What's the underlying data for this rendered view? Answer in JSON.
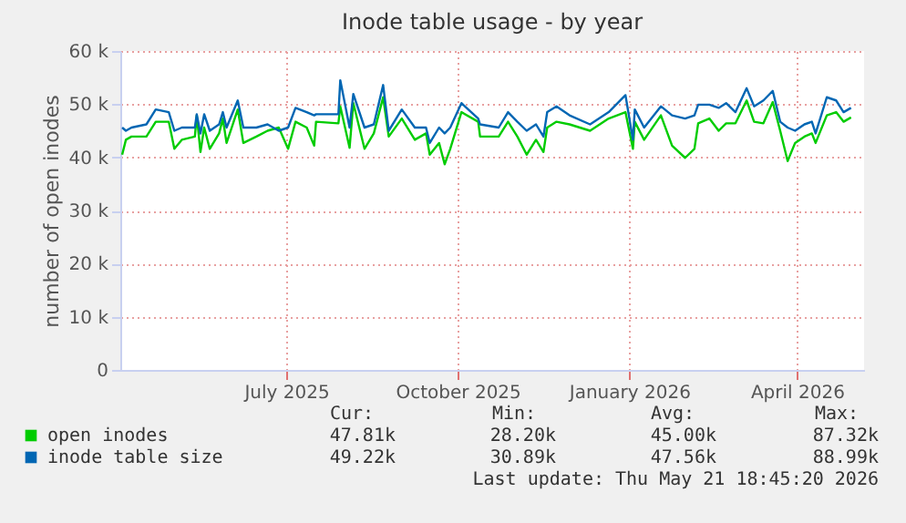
{
  "chart_data": {
    "type": "line",
    "title": "Inode table usage - by year",
    "ylabel": "number of open inodes",
    "x": [
      "2025-04-18",
      "2025-04-20",
      "2025-04-23",
      "2025-05-01",
      "2025-05-06",
      "2025-05-13",
      "2025-05-16",
      "2025-05-20",
      "2025-05-27",
      "2025-05-28",
      "2025-05-30",
      "2025-06-01",
      "2025-06-04",
      "2025-06-09",
      "2025-06-11",
      "2025-06-13",
      "2025-06-19",
      "2025-06-22",
      "2025-06-29",
      "2025-07-05",
      "2025-07-11",
      "2025-07-16",
      "2025-07-20",
      "2025-07-26",
      "2025-07-30",
      "2025-07-31",
      "2025-08-12",
      "2025-08-13",
      "2025-08-18",
      "2025-08-20",
      "2025-08-26",
      "2025-08-31",
      "2025-09-05",
      "2025-09-08",
      "2025-09-15",
      "2025-09-22",
      "2025-09-28",
      "2025-09-30",
      "2025-10-05",
      "2025-10-08",
      "2025-10-11",
      "2025-10-17",
      "2025-10-26",
      "2025-10-27",
      "2025-11-06",
      "2025-11-11",
      "2025-11-16",
      "2025-11-21",
      "2025-11-26",
      "2025-11-30",
      "2025-12-02",
      "2025-12-07",
      "2025-12-14",
      "2025-12-25",
      "2026-01-04",
      "2026-01-13",
      "2026-01-17",
      "2026-01-18",
      "2026-01-23",
      "2026-02-01",
      "2026-02-07",
      "2026-02-14",
      "2026-02-19",
      "2026-02-21",
      "2026-02-27",
      "2026-03-04",
      "2026-03-08",
      "2026-03-13",
      "2026-03-19",
      "2026-03-23",
      "2026-03-28",
      "2026-04-02",
      "2026-04-06",
      "2026-04-10",
      "2026-04-14",
      "2026-04-19",
      "2026-04-23",
      "2026-04-25",
      "2026-05-01",
      "2026-05-06",
      "2026-05-10",
      "2026-05-14"
    ],
    "series": [
      {
        "name": "open inodes",
        "color": "#00cc00",
        "values": [
          40500,
          43300,
          43900,
          43900,
          46700,
          46700,
          41600,
          43300,
          43900,
          47900,
          41000,
          45600,
          41600,
          44500,
          47300,
          42700,
          49000,
          42700,
          43900,
          45000,
          45600,
          41600,
          46700,
          45600,
          42200,
          46700,
          46400,
          49600,
          41800,
          50200,
          41600,
          44500,
          51300,
          43900,
          47300,
          43300,
          44500,
          40500,
          42700,
          38700,
          41600,
          48500,
          46700,
          43900,
          43900,
          46700,
          43900,
          40500,
          43300,
          41000,
          45600,
          46700,
          46200,
          45000,
          47300,
          48500,
          41600,
          46700,
          43300,
          47900,
          42200,
          39900,
          41600,
          46400,
          47300,
          45000,
          46400,
          46400,
          50700,
          46700,
          46400,
          50400,
          45000,
          39300,
          42700,
          43900,
          44500,
          42700,
          47900,
          48500,
          46700,
          47500
        ]
      },
      {
        "name": "inode table size",
        "color": "#0066b3",
        "values": [
          45600,
          45000,
          45600,
          46200,
          49000,
          48500,
          45000,
          45600,
          45600,
          48100,
          44500,
          48100,
          45000,
          46200,
          48500,
          45600,
          50700,
          45600,
          45600,
          46200,
          45000,
          45600,
          49300,
          48500,
          47900,
          48100,
          48100,
          54500,
          45600,
          51900,
          45600,
          46200,
          53600,
          45000,
          49000,
          45600,
          45600,
          42700,
          45600,
          44500,
          45600,
          50200,
          47300,
          46200,
          45600,
          48500,
          46700,
          45000,
          46200,
          43900,
          48500,
          49600,
          47900,
          46200,
          48500,
          51700,
          43300,
          49000,
          45600,
          49600,
          47900,
          47300,
          47900,
          49900,
          49900,
          49300,
          50200,
          48500,
          53000,
          49600,
          50700,
          52500,
          46700,
          45600,
          45000,
          46200,
          46700,
          44500,
          51300,
          50700,
          48500,
          49300
        ]
      }
    ],
    "xlim": [
      "2025-04-17",
      "2026-05-21"
    ],
    "xticks": [
      {
        "value": "2025-07-15",
        "label": "July 2025"
      },
      {
        "value": "2025-10-15",
        "label": "October 2025"
      },
      {
        "value": "2026-01-15",
        "label": "January 2026"
      },
      {
        "value": "2026-04-15",
        "label": "April 2026"
      }
    ],
    "ylim": [
      0,
      60000
    ],
    "yticks": [
      0,
      {
        "value": 10000,
        "label": "10 k"
      },
      {
        "value": 20000,
        "label": "20 k"
      },
      {
        "value": 30000,
        "label": "30 k"
      },
      {
        "value": 40000,
        "label": "40 k"
      },
      {
        "value": 50000,
        "label": "50 k"
      },
      {
        "value": 60000,
        "label": "60 k"
      }
    ],
    "grid": true,
    "legend": "bottom",
    "marker": "none",
    "line_style": "solid",
    "annotations": [
      "Cur:",
      "Min:",
      "Avg:",
      "Max:",
      "47.81k",
      "28.20k",
      "45.00k",
      "87.32k",
      "49.22k",
      "30.89k",
      "47.56k",
      "88.99k",
      "Last update: Thu May 21 18:45:20 2026"
    ]
  }
}
